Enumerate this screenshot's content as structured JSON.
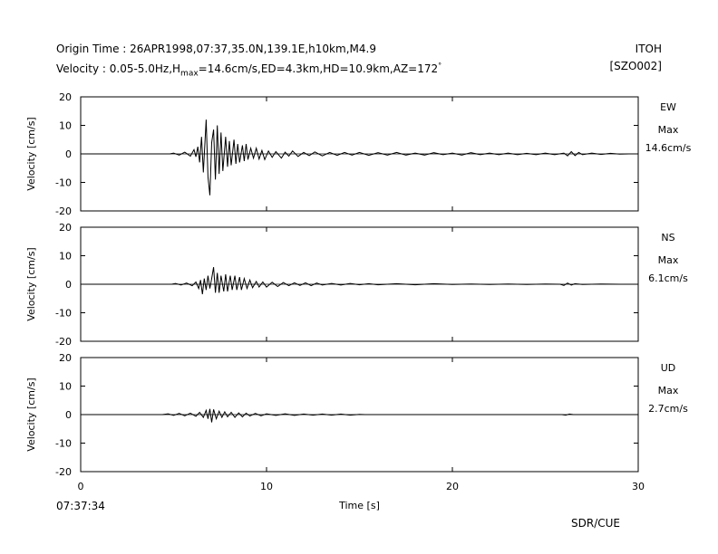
{
  "header": {
    "origin_line": "Origin Time : 26APR1998,07:37,35.0N,139.1E,h10km,M4.9",
    "velocity_prefix": "Velocity : 0.05-5.0Hz,H",
    "velocity_sub": "max",
    "velocity_rest": "=14.6cm/s,ED=4.3km,HD=10.9km,AZ=172",
    "velocity_sup": "°",
    "station": "ITOH",
    "station_code": "[SZO002]"
  },
  "footer": {
    "start_time": "07:37:34",
    "credit": "SDR/CUE"
  },
  "chart_data": {
    "type": "line",
    "xlabel": "Time [s]",
    "xlim": [
      0,
      30
    ],
    "x_ticks": [
      0,
      10,
      20,
      30
    ],
    "panels": [
      {
        "component": "EW",
        "max_label": "Max",
        "max_value": "14.6cm/s",
        "ylabel": "Velocity [cm/s]",
        "ylim": [
          -20,
          20
        ],
        "y_ticks": [
          20,
          10,
          0,
          -10,
          -20
        ],
        "trace": [
          [
            0,
            0
          ],
          [
            4.8,
            0
          ],
          [
            5.0,
            0.3
          ],
          [
            5.3,
            -0.4
          ],
          [
            5.6,
            0.6
          ],
          [
            5.9,
            -0.8
          ],
          [
            6.1,
            1.5
          ],
          [
            6.2,
            -1.0
          ],
          [
            6.3,
            2.5
          ],
          [
            6.4,
            -3.0
          ],
          [
            6.5,
            6.0
          ],
          [
            6.6,
            -6.5
          ],
          [
            6.75,
            12.0
          ],
          [
            6.85,
            -8.0
          ],
          [
            6.95,
            -14.5
          ],
          [
            7.05,
            4.0
          ],
          [
            7.15,
            8.5
          ],
          [
            7.25,
            -9.0
          ],
          [
            7.35,
            10.0
          ],
          [
            7.45,
            -7.0
          ],
          [
            7.55,
            7.5
          ],
          [
            7.65,
            -6.0
          ],
          [
            7.8,
            6.0
          ],
          [
            7.9,
            -4.5
          ],
          [
            8.0,
            4.5
          ],
          [
            8.1,
            -4.0
          ],
          [
            8.25,
            5.0
          ],
          [
            8.35,
            -3.5
          ],
          [
            8.45,
            3.5
          ],
          [
            8.55,
            -3.0
          ],
          [
            8.7,
            3.0
          ],
          [
            8.8,
            -2.5
          ],
          [
            8.9,
            3.5
          ],
          [
            9.0,
            -2.0
          ],
          [
            9.15,
            2.0
          ],
          [
            9.3,
            -1.5
          ],
          [
            9.45,
            2.0
          ],
          [
            9.6,
            -1.8
          ],
          [
            9.75,
            1.2
          ],
          [
            9.9,
            -2.0
          ],
          [
            10.1,
            1.0
          ],
          [
            10.3,
            -1.2
          ],
          [
            10.5,
            0.8
          ],
          [
            10.8,
            -1.5
          ],
          [
            11.0,
            0.6
          ],
          [
            11.2,
            -0.8
          ],
          [
            11.4,
            1.0
          ],
          [
            11.7,
            -0.9
          ],
          [
            12.0,
            0.5
          ],
          [
            12.3,
            -0.6
          ],
          [
            12.6,
            0.7
          ],
          [
            13.0,
            -0.7
          ],
          [
            13.4,
            0.5
          ],
          [
            13.8,
            -0.5
          ],
          [
            14.2,
            0.5
          ],
          [
            14.6,
            -0.4
          ],
          [
            15.0,
            0.5
          ],
          [
            15.5,
            -0.5
          ],
          [
            16.0,
            0.4
          ],
          [
            16.5,
            -0.4
          ],
          [
            17.0,
            0.5
          ],
          [
            17.5,
            -0.4
          ],
          [
            18.0,
            0.3
          ],
          [
            18.5,
            -0.4
          ],
          [
            19.0,
            0.4
          ],
          [
            19.5,
            -0.3
          ],
          [
            20.0,
            0.3
          ],
          [
            20.5,
            -0.4
          ],
          [
            21.0,
            0.4
          ],
          [
            21.5,
            -0.3
          ],
          [
            22.0,
            0.3
          ],
          [
            22.5,
            -0.3
          ],
          [
            23.0,
            0.3
          ],
          [
            23.5,
            -0.3
          ],
          [
            24.0,
            0.2
          ],
          [
            24.5,
            -0.3
          ],
          [
            25.0,
            0.3
          ],
          [
            25.5,
            -0.3
          ],
          [
            26.0,
            0.3
          ],
          [
            26.2,
            -0.7
          ],
          [
            26.4,
            0.8
          ],
          [
            26.6,
            -0.6
          ],
          [
            26.8,
            0.5
          ],
          [
            27.0,
            -0.3
          ],
          [
            27.5,
            0.3
          ],
          [
            28.0,
            -0.2
          ],
          [
            28.5,
            0.2
          ],
          [
            29.0,
            -0.1
          ],
          [
            29.5,
            0
          ],
          [
            30,
            0
          ]
        ]
      },
      {
        "component": "NS",
        "max_label": "Max",
        "max_value": "6.1cm/s",
        "ylabel": "Velocity [cm/s]",
        "ylim": [
          -20,
          20
        ],
        "y_ticks": [
          20,
          10,
          0,
          -10,
          -20
        ],
        "trace": [
          [
            0,
            0
          ],
          [
            4.9,
            0
          ],
          [
            5.1,
            0.3
          ],
          [
            5.4,
            -0.3
          ],
          [
            5.7,
            0.4
          ],
          [
            6.0,
            -0.5
          ],
          [
            6.2,
            0.8
          ],
          [
            6.35,
            -1.5
          ],
          [
            6.45,
            1.5
          ],
          [
            6.55,
            -3.5
          ],
          [
            6.65,
            2.0
          ],
          [
            6.75,
            -2.0
          ],
          [
            6.85,
            3.0
          ],
          [
            6.95,
            -1.5
          ],
          [
            7.05,
            2.0
          ],
          [
            7.15,
            6.0
          ],
          [
            7.25,
            -3.0
          ],
          [
            7.35,
            4.0
          ],
          [
            7.45,
            -3.0
          ],
          [
            7.55,
            3.0
          ],
          [
            7.7,
            -2.5
          ],
          [
            7.8,
            3.5
          ],
          [
            7.9,
            -2.5
          ],
          [
            8.05,
            3.0
          ],
          [
            8.15,
            -2.0
          ],
          [
            8.3,
            3.0
          ],
          [
            8.4,
            -2.0
          ],
          [
            8.55,
            2.5
          ],
          [
            8.65,
            -2.0
          ],
          [
            8.8,
            2.0
          ],
          [
            8.95,
            -1.5
          ],
          [
            9.1,
            1.5
          ],
          [
            9.25,
            -1.2
          ],
          [
            9.45,
            1.0
          ],
          [
            9.6,
            -1.0
          ],
          [
            9.8,
            0.8
          ],
          [
            10.0,
            -1.0
          ],
          [
            10.3,
            0.7
          ],
          [
            10.6,
            -0.8
          ],
          [
            10.9,
            0.6
          ],
          [
            11.2,
            -0.5
          ],
          [
            11.5,
            0.5
          ],
          [
            11.8,
            -0.4
          ],
          [
            12.1,
            0.5
          ],
          [
            12.4,
            -0.5
          ],
          [
            12.7,
            0.4
          ],
          [
            13.0,
            -0.3
          ],
          [
            13.5,
            0.3
          ],
          [
            14.0,
            -0.3
          ],
          [
            14.5,
            0.3
          ],
          [
            15.0,
            -0.2
          ],
          [
            15.5,
            0.2
          ],
          [
            16.0,
            -0.2
          ],
          [
            17.0,
            0.2
          ],
          [
            18.0,
            -0.2
          ],
          [
            19.0,
            0.2
          ],
          [
            20.0,
            -0.1
          ],
          [
            21.0,
            0.1
          ],
          [
            22.0,
            -0.1
          ],
          [
            23.0,
            0.1
          ],
          [
            24.0,
            -0.1
          ],
          [
            25.0,
            0.1
          ],
          [
            25.8,
            0
          ],
          [
            26.0,
            -0.4
          ],
          [
            26.2,
            0.4
          ],
          [
            26.4,
            -0.3
          ],
          [
            26.6,
            0.2
          ],
          [
            27.0,
            -0.1
          ],
          [
            28.0,
            0.1
          ],
          [
            29.0,
            0
          ],
          [
            30,
            0
          ]
        ]
      },
      {
        "component": "UD",
        "max_label": "Max",
        "max_value": "2.7cm/s",
        "ylabel": "Velocity [cm/s]",
        "ylim": [
          -20,
          20
        ],
        "y_ticks": [
          20,
          10,
          0,
          -10,
          -20
        ],
        "trace": [
          [
            0,
            0
          ],
          [
            4.4,
            0
          ],
          [
            4.7,
            0.3
          ],
          [
            5.0,
            -0.3
          ],
          [
            5.3,
            0.4
          ],
          [
            5.6,
            -0.4
          ],
          [
            5.9,
            0.5
          ],
          [
            6.2,
            -0.6
          ],
          [
            6.4,
            0.8
          ],
          [
            6.6,
            -1.0
          ],
          [
            6.75,
            1.5
          ],
          [
            6.85,
            -1.5
          ],
          [
            6.95,
            2.0
          ],
          [
            7.05,
            -2.7
          ],
          [
            7.15,
            1.8
          ],
          [
            7.3,
            -1.5
          ],
          [
            7.45,
            1.2
          ],
          [
            7.6,
            -1.0
          ],
          [
            7.75,
            1.0
          ],
          [
            7.9,
            -0.8
          ],
          [
            8.1,
            0.8
          ],
          [
            8.3,
            -1.0
          ],
          [
            8.5,
            0.6
          ],
          [
            8.7,
            -0.8
          ],
          [
            8.9,
            0.5
          ],
          [
            9.1,
            -0.5
          ],
          [
            9.4,
            0.4
          ],
          [
            9.7,
            -0.4
          ],
          [
            10.0,
            0.3
          ],
          [
            10.5,
            -0.3
          ],
          [
            11.0,
            0.3
          ],
          [
            11.5,
            -0.3
          ],
          [
            12.0,
            0.2
          ],
          [
            12.5,
            -0.2
          ],
          [
            13.0,
            0.2
          ],
          [
            13.5,
            -0.2
          ],
          [
            14.0,
            0.2
          ],
          [
            14.5,
            -0.2
          ],
          [
            15.0,
            0.1
          ],
          [
            15.3,
            0
          ],
          [
            25.9,
            0
          ],
          [
            26.1,
            -0.2
          ],
          [
            26.3,
            0.2
          ],
          [
            26.5,
            0
          ],
          [
            30,
            0
          ]
        ]
      }
    ]
  }
}
